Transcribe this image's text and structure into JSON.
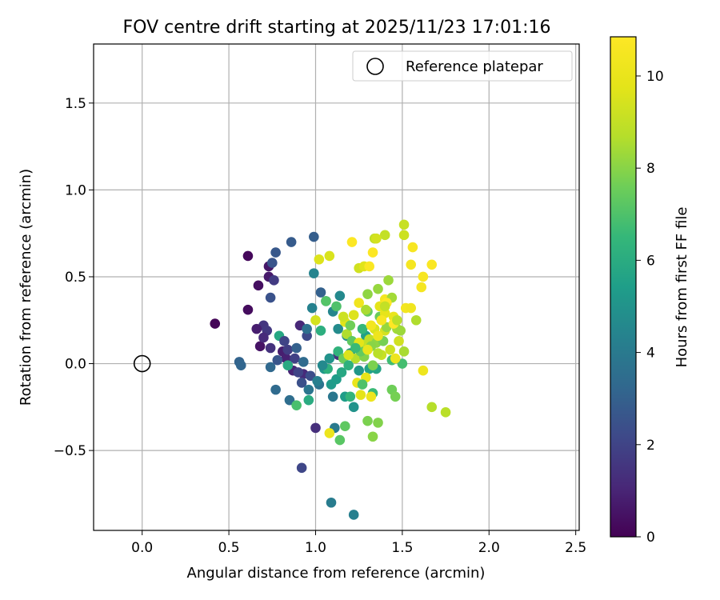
{
  "chart_data": {
    "type": "scatter",
    "title": "FOV centre drift starting at 2025/11/23 17:01:16",
    "xlabel": "Angular distance from reference (arcmin)",
    "ylabel": "Rotation from reference (arcmin)",
    "xlim": [
      -0.28,
      2.52
    ],
    "ylim": [
      -0.96,
      1.84
    ],
    "xticks": [
      0.0,
      0.5,
      1.0,
      1.5,
      2.0,
      2.5
    ],
    "xtick_labels": [
      "0.0",
      "0.5",
      "1.0",
      "1.5",
      "2.0",
      "2.5"
    ],
    "yticks": [
      -0.5,
      0.0,
      0.5,
      1.0,
      1.5
    ],
    "ytick_labels": [
      "−0.5",
      "0.0",
      "0.5",
      "1.0",
      "1.5"
    ],
    "grid": true,
    "legend": {
      "location": "top-right",
      "entries": [
        "Reference platepar"
      ]
    },
    "reference": {
      "x": 0.0,
      "y": 0.0
    },
    "colorbar": {
      "label": "Hours from first FF file",
      "colormap": "viridis",
      "range": [
        0,
        10.85
      ],
      "ticks": [
        0,
        2,
        4,
        6,
        8,
        10
      ],
      "tick_labels": [
        "0",
        "2",
        "4",
        "6",
        "8",
        "10"
      ]
    },
    "points": [
      [
        0.42,
        0.23,
        0.1
      ],
      [
        0.61,
        0.62,
        0.2
      ],
      [
        0.61,
        0.31,
        0.3
      ],
      [
        0.67,
        0.45,
        0.4
      ],
      [
        0.68,
        0.1,
        0.5
      ],
      [
        0.73,
        0.56,
        0.6
      ],
      [
        0.73,
        0.5,
        0.7
      ],
      [
        0.81,
        0.07,
        0.8
      ],
      [
        0.83,
        0.03,
        0.9
      ],
      [
        0.87,
        -0.04,
        1.0
      ],
      [
        0.91,
        0.22,
        1.1
      ],
      [
        0.93,
        -0.06,
        1.2
      ],
      [
        1.0,
        -0.37,
        1.3
      ],
      [
        1.13,
        0.05,
        1.4
      ],
      [
        0.7,
        0.22,
        1.5
      ],
      [
        0.72,
        0.19,
        1.6
      ],
      [
        0.76,
        0.48,
        1.7
      ],
      [
        0.84,
        0.08,
        1.8
      ],
      [
        0.88,
        0.03,
        1.9
      ],
      [
        0.9,
        -0.05,
        2.0
      ],
      [
        0.92,
        -0.6,
        2.1
      ],
      [
        0.95,
        0.16,
        2.2
      ],
      [
        0.97,
        -0.07,
        2.3
      ],
      [
        0.92,
        -0.11,
        2.4
      ],
      [
        0.74,
        0.38,
        2.5
      ],
      [
        0.75,
        0.58,
        2.6
      ],
      [
        0.77,
        0.64,
        2.7
      ],
      [
        0.86,
        0.7,
        2.8
      ],
      [
        0.99,
        0.73,
        2.9
      ],
      [
        1.03,
        0.41,
        3.0
      ],
      [
        0.56,
        0.01,
        3.1
      ],
      [
        0.57,
        -0.01,
        3.2
      ],
      [
        0.74,
        -0.02,
        3.3
      ],
      [
        0.77,
        -0.15,
        3.4
      ],
      [
        0.85,
        -0.21,
        3.5
      ],
      [
        0.95,
        0.2,
        3.6
      ],
      [
        1.02,
        -0.12,
        3.7
      ],
      [
        1.06,
        0.36,
        3.8
      ],
      [
        1.1,
        -0.19,
        3.9
      ],
      [
        1.11,
        -0.37,
        4.0
      ],
      [
        1.09,
        -0.8,
        4.1
      ],
      [
        1.22,
        -0.87,
        4.2
      ],
      [
        0.98,
        0.32,
        4.3
      ],
      [
        0.99,
        0.52,
        4.4
      ],
      [
        1.1,
        0.3,
        4.5
      ],
      [
        1.14,
        0.39,
        4.6
      ],
      [
        1.13,
        0.2,
        4.7
      ],
      [
        1.18,
        0.16,
        4.8
      ],
      [
        1.2,
        0.06,
        4.9
      ],
      [
        1.22,
        -0.25,
        5.0
      ],
      [
        1.25,
        -0.04,
        5.1
      ],
      [
        1.05,
        -0.03,
        5.2
      ],
      [
        1.09,
        -0.12,
        5.3
      ],
      [
        1.17,
        -0.19,
        5.4
      ],
      [
        1.29,
        0.16,
        5.5
      ],
      [
        1.31,
        -0.03,
        5.6
      ],
      [
        1.35,
        -0.03,
        5.7
      ],
      [
        0.79,
        0.16,
        5.8
      ],
      [
        0.84,
        -0.01,
        5.9
      ],
      [
        0.96,
        -0.21,
        6.0
      ],
      [
        1.03,
        0.19,
        6.1
      ],
      [
        1.07,
        -0.03,
        6.2
      ],
      [
        1.13,
        0.07,
        6.3
      ],
      [
        1.2,
        -0.19,
        6.4
      ],
      [
        1.27,
        0.2,
        6.5
      ],
      [
        1.33,
        -0.17,
        6.6
      ],
      [
        1.44,
        0.02,
        6.7
      ],
      [
        1.5,
        0.0,
        6.8
      ],
      [
        0.89,
        -0.24,
        6.9
      ],
      [
        1.12,
        0.33,
        7.0
      ],
      [
        1.06,
        0.36,
        7.1
      ],
      [
        1.14,
        -0.44,
        7.2
      ],
      [
        1.17,
        -0.36,
        7.3
      ],
      [
        1.3,
        0.3,
        7.4
      ],
      [
        1.37,
        0.27,
        7.5
      ],
      [
        1.44,
        -0.15,
        7.6
      ],
      [
        1.46,
        -0.19,
        7.7
      ],
      [
        1.3,
        -0.33,
        7.8
      ],
      [
        1.36,
        -0.34,
        7.9
      ],
      [
        1.33,
        -0.42,
        8.0
      ],
      [
        1.3,
        0.4,
        8.1
      ],
      [
        1.36,
        0.43,
        8.2
      ],
      [
        1.42,
        0.48,
        8.3
      ],
      [
        1.47,
        0.2,
        8.4
      ],
      [
        1.51,
        0.07,
        8.5
      ],
      [
        1.58,
        0.25,
        8.6
      ],
      [
        1.67,
        -0.25,
        8.7
      ],
      [
        1.75,
        -0.28,
        8.8
      ],
      [
        1.34,
        0.72,
        8.9
      ],
      [
        1.4,
        0.74,
        9.0
      ],
      [
        1.51,
        0.8,
        9.1
      ],
      [
        1.51,
        0.74,
        9.2
      ],
      [
        1.25,
        0.55,
        9.3
      ],
      [
        1.35,
        0.72,
        9.4
      ],
      [
        1.08,
        0.62,
        9.5
      ],
      [
        1.02,
        0.6,
        9.6
      ],
      [
        1.28,
        0.56,
        9.7
      ],
      [
        1.37,
        0.33,
        9.8
      ],
      [
        1.4,
        0.29,
        9.9
      ],
      [
        1.45,
        0.27,
        10.0
      ],
      [
        1.08,
        -0.4,
        10.1
      ],
      [
        1.32,
        -0.19,
        10.2
      ],
      [
        1.25,
        0.35,
        10.3
      ],
      [
        1.4,
        0.37,
        10.4
      ],
      [
        1.55,
        0.57,
        10.5
      ],
      [
        1.62,
        0.5,
        10.6
      ],
      [
        1.67,
        0.57,
        10.7
      ],
      [
        1.21,
        0.7,
        10.8
      ],
      [
        1.33,
        0.64,
        10.8
      ],
      [
        1.31,
        0.56,
        10.7
      ],
      [
        1.56,
        0.67,
        10.6
      ],
      [
        1.61,
        0.44,
        10.5
      ],
      [
        1.52,
        0.32,
        10.4
      ],
      [
        1.55,
        0.32,
        10.3
      ],
      [
        1.62,
        -0.04,
        10.2
      ],
      [
        1.46,
        0.03,
        10.1
      ],
      [
        1.24,
        -0.11,
        10.0
      ],
      [
        1.29,
        -0.08,
        9.9
      ],
      [
        1.26,
        -0.18,
        9.8
      ],
      [
        1.17,
        0.24,
        9.7
      ],
      [
        1.22,
        0.28,
        9.6
      ],
      [
        1.34,
        0.2,
        9.5
      ],
      [
        1.4,
        0.19,
        9.4
      ],
      [
        1.48,
        0.13,
        9.3
      ],
      [
        1.43,
        0.08,
        9.2
      ],
      [
        1.38,
        0.05,
        9.1
      ],
      [
        1.27,
        0.11,
        9.0
      ],
      [
        1.31,
        0.14,
        8.9
      ],
      [
        1.36,
        0.06,
        8.8
      ],
      [
        1.23,
        0.03,
        8.7
      ],
      [
        1.18,
        0.17,
        8.6
      ],
      [
        1.29,
        0.31,
        8.5
      ],
      [
        1.44,
        0.38,
        8.4
      ],
      [
        1.49,
        0.19,
        8.3
      ],
      [
        1.41,
        0.21,
        8.2
      ],
      [
        1.35,
        0.12,
        8.1
      ],
      [
        1.32,
        0.1,
        8.0
      ],
      [
        1.28,
        0.04,
        7.9
      ],
      [
        1.33,
        -0.01,
        7.8
      ],
      [
        1.39,
        0.13,
        7.7
      ],
      [
        1.2,
        0.22,
        7.6
      ],
      [
        1.16,
        0.03,
        7.5
      ],
      [
        1.26,
        0.07,
        7.4
      ],
      [
        1.21,
        0.13,
        7.3
      ],
      [
        1.45,
        0.23,
        10.9
      ],
      [
        1.41,
        0.35,
        10.8
      ],
      [
        1.38,
        0.25,
        10.6
      ],
      [
        1.32,
        0.22,
        10.4
      ],
      [
        1.36,
        0.16,
        10.2
      ],
      [
        1.3,
        0.08,
        10.0
      ],
      [
        1.25,
        0.12,
        9.8
      ],
      [
        1.19,
        0.05,
        9.6
      ],
      [
        1.0,
        0.25,
        9.4
      ],
      [
        1.16,
        0.27,
        9.2
      ],
      [
        1.4,
        0.33,
        9.0
      ],
      [
        1.47,
        0.25,
        8.8
      ],
      [
        0.66,
        0.2,
        0.8
      ],
      [
        0.7,
        0.15,
        1.2
      ],
      [
        0.74,
        0.09,
        1.4
      ],
      [
        0.82,
        0.13,
        2.0
      ],
      [
        0.78,
        0.02,
        2.6
      ],
      [
        0.89,
        0.09,
        3.0
      ],
      [
        0.93,
        0.01,
        3.4
      ],
      [
        0.96,
        -0.15,
        3.8
      ],
      [
        1.01,
        -0.1,
        4.2
      ],
      [
        1.04,
        -0.01,
        4.6
      ],
      [
        1.08,
        0.03,
        5.0
      ],
      [
        1.12,
        -0.09,
        5.4
      ],
      [
        1.15,
        -0.05,
        5.8
      ],
      [
        1.19,
        -0.01,
        6.2
      ],
      [
        1.23,
        0.09,
        6.6
      ],
      [
        1.27,
        -0.12,
        7.0
      ]
    ]
  }
}
